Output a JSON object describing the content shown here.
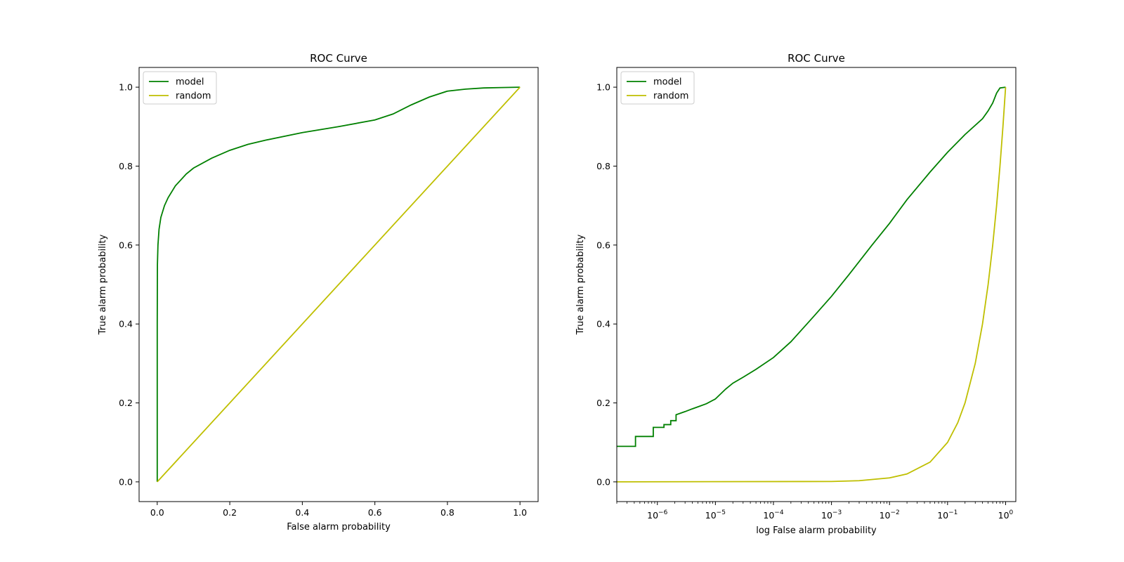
{
  "chart_data": [
    {
      "type": "line",
      "title": "ROC Curve",
      "xlabel": "False alarm probability",
      "ylabel": "True alarm probability",
      "xscale": "linear",
      "xlim": [
        -0.05,
        1.05
      ],
      "ylim": [
        -0.05,
        1.05
      ],
      "xticks": [
        0.0,
        0.2,
        0.4,
        0.6,
        0.8,
        1.0
      ],
      "xtick_labels": [
        "0.0",
        "0.2",
        "0.4",
        "0.6",
        "0.8",
        "1.0"
      ],
      "yticks": [
        0.0,
        0.2,
        0.4,
        0.6,
        0.8,
        1.0
      ],
      "ytick_labels": [
        "0.0",
        "0.2",
        "0.4",
        "0.6",
        "0.8",
        "1.0"
      ],
      "grid": false,
      "legend": "top-left",
      "series": [
        {
          "name": "model",
          "color": "#008000",
          "x": [
            0.0,
            0.0,
            0.0005,
            0.002,
            0.005,
            0.01,
            0.02,
            0.03,
            0.05,
            0.08,
            0.1,
            0.15,
            0.2,
            0.25,
            0.3,
            0.4,
            0.5,
            0.6,
            0.65,
            0.7,
            0.75,
            0.8,
            0.85,
            0.9,
            0.95,
            1.0
          ],
          "y": [
            0.0,
            0.4,
            0.55,
            0.6,
            0.64,
            0.67,
            0.7,
            0.72,
            0.75,
            0.78,
            0.795,
            0.82,
            0.84,
            0.855,
            0.866,
            0.885,
            0.9,
            0.917,
            0.932,
            0.955,
            0.975,
            0.99,
            0.995,
            0.998,
            0.999,
            1.0
          ]
        },
        {
          "name": "random",
          "color": "#bfbf00",
          "x": [
            0.0,
            1.0
          ],
          "y": [
            0.0,
            1.0
          ]
        }
      ]
    },
    {
      "type": "line",
      "title": "ROC Curve",
      "xlabel": "log False alarm probability",
      "ylabel": "True alarm probability",
      "xscale": "log",
      "xlim": [
        2e-07,
        1.5
      ],
      "ylim": [
        -0.05,
        1.05
      ],
      "xticks": [
        1e-06,
        1e-05,
        0.0001,
        0.001,
        0.01,
        0.1,
        1
      ],
      "xtick_labels": [
        {
          "base": "10",
          "exp": "−6"
        },
        {
          "base": "10",
          "exp": "−5"
        },
        {
          "base": "10",
          "exp": "−4"
        },
        {
          "base": "10",
          "exp": "−3"
        },
        {
          "base": "10",
          "exp": "−2"
        },
        {
          "base": "10",
          "exp": "−1"
        },
        {
          "base": "10",
          "exp": "0"
        }
      ],
      "yticks": [
        0.0,
        0.2,
        0.4,
        0.6,
        0.8,
        1.0
      ],
      "ytick_labels": [
        "0.0",
        "0.2",
        "0.4",
        "0.6",
        "0.8",
        "1.0"
      ],
      "grid": false,
      "legend": "top-left",
      "series": [
        {
          "name": "model",
          "color": "#008000",
          "x": [
            2e-07,
            4.2e-07,
            4.2e-07,
            8.5e-07,
            8.5e-07,
            1.3e-06,
            1.3e-06,
            1.7e-06,
            1.7e-06,
            2.1e-06,
            2.1e-06,
            3e-06,
            4e-06,
            5e-06,
            7e-06,
            1e-05,
            1.5e-05,
            2e-05,
            3e-05,
            5e-05,
            0.0001,
            0.0002,
            0.0005,
            0.001,
            0.002,
            0.005,
            0.01,
            0.02,
            0.05,
            0.1,
            0.2,
            0.4,
            0.5,
            0.6,
            0.7,
            0.8,
            1.0
          ],
          "y": [
            0.09,
            0.09,
            0.115,
            0.115,
            0.138,
            0.138,
            0.145,
            0.145,
            0.155,
            0.155,
            0.17,
            0.178,
            0.185,
            0.19,
            0.198,
            0.21,
            0.235,
            0.25,
            0.265,
            0.285,
            0.315,
            0.355,
            0.42,
            0.47,
            0.525,
            0.6,
            0.655,
            0.715,
            0.785,
            0.835,
            0.88,
            0.92,
            0.94,
            0.96,
            0.985,
            0.998,
            1.0
          ]
        },
        {
          "name": "random",
          "color": "#bfbf00",
          "x": [
            2e-07,
            0.001,
            0.003,
            0.01,
            0.02,
            0.05,
            0.1,
            0.15,
            0.2,
            0.3,
            0.4,
            0.5,
            0.6,
            0.7,
            0.8,
            0.9,
            1.0
          ],
          "y": [
            2e-07,
            0.001,
            0.003,
            0.01,
            0.02,
            0.05,
            0.1,
            0.15,
            0.2,
            0.3,
            0.4,
            0.5,
            0.6,
            0.7,
            0.8,
            0.9,
            1.0
          ]
        }
      ]
    }
  ]
}
